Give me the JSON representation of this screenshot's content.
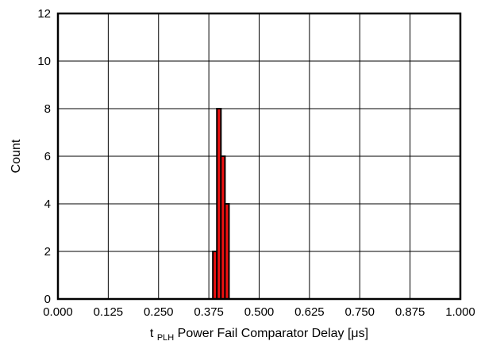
{
  "chart_data": {
    "type": "bar",
    "title": "",
    "xlabel": {
      "main": "t",
      "subscript": "PLH",
      "rest": " Power Fail Comparator Delay [μs]"
    },
    "ylabel": "Count",
    "xlim": [
      0.0,
      1.0
    ],
    "ylim": [
      0,
      12
    ],
    "x_ticks": [
      "0.000",
      "0.125",
      "0.250",
      "0.375",
      "0.500",
      "0.625",
      "0.750",
      "0.875",
      "1.000"
    ],
    "y_ticks": [
      "0",
      "2",
      "4",
      "6",
      "8",
      "10",
      "12"
    ],
    "grid": true,
    "bin_width": 0.01,
    "bins": [
      {
        "x": 0.39,
        "count": 2
      },
      {
        "x": 0.4,
        "count": 8
      },
      {
        "x": 0.41,
        "count": 6
      },
      {
        "x": 0.42,
        "count": 4
      }
    ],
    "colors": {
      "bar_fill": "#ee1111",
      "bar_stroke": "#000000",
      "grid": "#000000",
      "frame": "#000000"
    }
  }
}
